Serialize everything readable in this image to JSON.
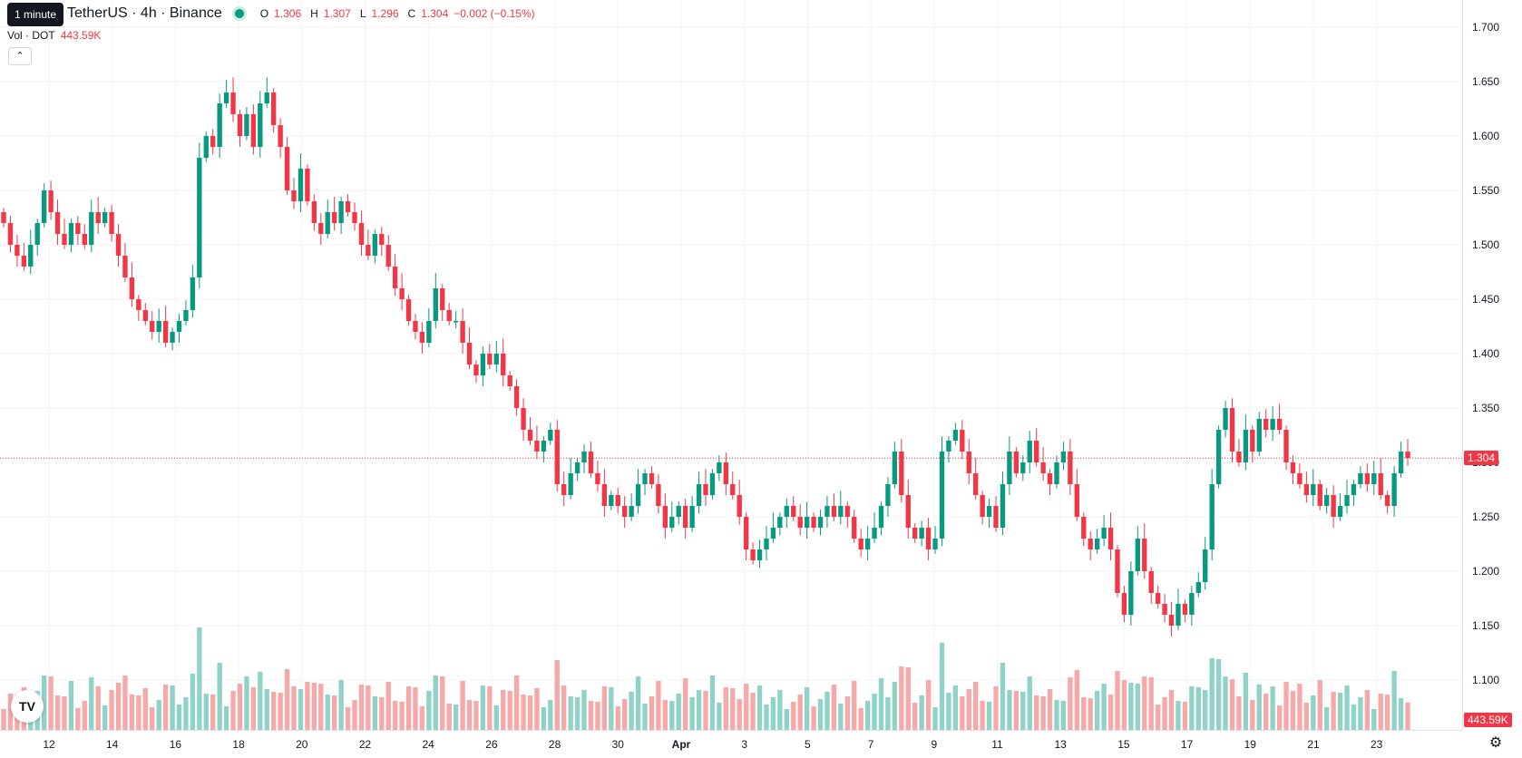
{
  "legend": {
    "symbol": "TetherUS · 4h · Binance",
    "open_key": "O",
    "open": "1.306",
    "high_key": "H",
    "high": "1.307",
    "low_key": "L",
    "low": "1.296",
    "close_key": "C",
    "close": "1.304",
    "change": "−0.002 (−0.15%)"
  },
  "volume_legend": {
    "label": "Vol · DOT",
    "value": "443.59K"
  },
  "tooltip": "1 minute",
  "collapse_icon": "chevron-up-icon",
  "logo_text": "TV",
  "price_badge": "1.304",
  "volume_badge": "443.59K",
  "colors": {
    "up": "#089981",
    "down": "#f23645",
    "up_vol": "#8fd3c8",
    "down_vol": "#f7a9a9",
    "grid": "#f0f3fa"
  },
  "chart_data": {
    "type": "candlestick",
    "price_ticks": [
      "1.700",
      "1.650",
      "1.600",
      "1.550",
      "1.500",
      "1.450",
      "1.400",
      "1.350",
      "1.300",
      "1.250",
      "1.200",
      "1.150",
      "1.100"
    ],
    "time_ticks": [
      "12",
      "14",
      "16",
      "18",
      "20",
      "22",
      "24",
      "26",
      "28",
      "30",
      "Apr",
      "3",
      "5",
      "7",
      "9",
      "11",
      "13",
      "15",
      "17",
      "19",
      "21",
      "23"
    ],
    "ylim": [
      1.1,
      1.7
    ],
    "current_price": 1.304,
    "last_volume": "443.59K",
    "candles": [
      [
        1.53,
        1.52
      ],
      [
        1.52,
        1.5
      ],
      [
        1.5,
        1.49
      ],
      [
        1.49,
        1.48
      ],
      [
        1.48,
        1.5
      ],
      [
        1.5,
        1.52
      ],
      [
        1.52,
        1.55
      ],
      [
        1.55,
        1.53
      ],
      [
        1.53,
        1.51
      ],
      [
        1.51,
        1.5
      ],
      [
        1.5,
        1.52
      ],
      [
        1.52,
        1.51
      ],
      [
        1.51,
        1.5
      ],
      [
        1.5,
        1.53
      ],
      [
        1.53,
        1.52
      ],
      [
        1.52,
        1.53
      ],
      [
        1.53,
        1.51
      ],
      [
        1.51,
        1.49
      ],
      [
        1.49,
        1.47
      ],
      [
        1.47,
        1.45
      ],
      [
        1.45,
        1.44
      ],
      [
        1.44,
        1.43
      ],
      [
        1.43,
        1.42
      ],
      [
        1.42,
        1.43
      ],
      [
        1.43,
        1.41
      ],
      [
        1.41,
        1.42
      ],
      [
        1.42,
        1.43
      ],
      [
        1.43,
        1.44
      ],
      [
        1.44,
        1.47
      ],
      [
        1.47,
        1.58
      ],
      [
        1.58,
        1.6
      ],
      [
        1.6,
        1.59
      ],
      [
        1.59,
        1.63
      ],
      [
        1.63,
        1.64
      ],
      [
        1.64,
        1.62
      ],
      [
        1.62,
        1.6
      ],
      [
        1.6,
        1.62
      ],
      [
        1.62,
        1.59
      ],
      [
        1.59,
        1.63
      ],
      [
        1.63,
        1.64
      ],
      [
        1.64,
        1.61
      ],
      [
        1.61,
        1.59
      ],
      [
        1.59,
        1.55
      ],
      [
        1.55,
        1.54
      ],
      [
        1.54,
        1.57
      ],
      [
        1.57,
        1.54
      ],
      [
        1.54,
        1.52
      ],
      [
        1.52,
        1.51
      ],
      [
        1.51,
        1.53
      ],
      [
        1.53,
        1.52
      ],
      [
        1.52,
        1.54
      ],
      [
        1.54,
        1.53
      ],
      [
        1.53,
        1.52
      ],
      [
        1.52,
        1.5
      ],
      [
        1.5,
        1.49
      ],
      [
        1.49,
        1.51
      ],
      [
        1.51,
        1.5
      ],
      [
        1.5,
        1.48
      ],
      [
        1.48,
        1.46
      ],
      [
        1.46,
        1.45
      ],
      [
        1.45,
        1.43
      ],
      [
        1.43,
        1.42
      ],
      [
        1.42,
        1.41
      ],
      [
        1.41,
        1.43
      ],
      [
        1.43,
        1.46
      ],
      [
        1.46,
        1.44
      ],
      [
        1.44,
        1.43
      ],
      [
        1.43,
        1.43
      ],
      [
        1.43,
        1.41
      ],
      [
        1.41,
        1.39
      ],
      [
        1.39,
        1.38
      ],
      [
        1.38,
        1.4
      ],
      [
        1.4,
        1.39
      ],
      [
        1.39,
        1.4
      ],
      [
        1.4,
        1.38
      ],
      [
        1.38,
        1.37
      ],
      [
        1.37,
        1.35
      ],
      [
        1.35,
        1.33
      ],
      [
        1.33,
        1.32
      ],
      [
        1.32,
        1.31
      ],
      [
        1.31,
        1.32
      ],
      [
        1.32,
        1.33
      ],
      [
        1.33,
        1.28
      ],
      [
        1.28,
        1.27
      ],
      [
        1.27,
        1.29
      ],
      [
        1.29,
        1.3
      ],
      [
        1.3,
        1.31
      ],
      [
        1.31,
        1.29
      ],
      [
        1.29,
        1.28
      ],
      [
        1.28,
        1.26
      ],
      [
        1.26,
        1.27
      ],
      [
        1.27,
        1.26
      ],
      [
        1.26,
        1.25
      ],
      [
        1.25,
        1.26
      ],
      [
        1.26,
        1.28
      ],
      [
        1.28,
        1.29
      ],
      [
        1.29,
        1.28
      ],
      [
        1.28,
        1.26
      ],
      [
        1.26,
        1.24
      ],
      [
        1.24,
        1.25
      ],
      [
        1.25,
        1.26
      ],
      [
        1.26,
        1.24
      ],
      [
        1.24,
        1.26
      ],
      [
        1.26,
        1.28
      ],
      [
        1.28,
        1.27
      ],
      [
        1.27,
        1.29
      ],
      [
        1.29,
        1.3
      ],
      [
        1.3,
        1.28
      ],
      [
        1.28,
        1.27
      ],
      [
        1.27,
        1.25
      ],
      [
        1.25,
        1.22
      ],
      [
        1.22,
        1.21
      ],
      [
        1.21,
        1.22
      ],
      [
        1.22,
        1.23
      ],
      [
        1.23,
        1.24
      ],
      [
        1.24,
        1.25
      ],
      [
        1.25,
        1.26
      ],
      [
        1.26,
        1.25
      ],
      [
        1.25,
        1.24
      ],
      [
        1.24,
        1.25
      ],
      [
        1.25,
        1.24
      ],
      [
        1.24,
        1.25
      ],
      [
        1.25,
        1.26
      ],
      [
        1.26,
        1.25
      ],
      [
        1.25,
        1.26
      ],
      [
        1.26,
        1.25
      ],
      [
        1.25,
        1.23
      ],
      [
        1.23,
        1.22
      ],
      [
        1.22,
        1.23
      ],
      [
        1.23,
        1.24
      ],
      [
        1.24,
        1.26
      ],
      [
        1.26,
        1.28
      ],
      [
        1.28,
        1.31
      ],
      [
        1.31,
        1.27
      ],
      [
        1.27,
        1.24
      ],
      [
        1.24,
        1.23
      ],
      [
        1.23,
        1.24
      ],
      [
        1.24,
        1.22
      ],
      [
        1.22,
        1.23
      ],
      [
        1.23,
        1.31
      ],
      [
        1.31,
        1.32
      ],
      [
        1.32,
        1.33
      ],
      [
        1.33,
        1.31
      ],
      [
        1.31,
        1.29
      ],
      [
        1.29,
        1.27
      ],
      [
        1.27,
        1.25
      ],
      [
        1.25,
        1.26
      ],
      [
        1.26,
        1.24
      ],
      [
        1.24,
        1.28
      ],
      [
        1.28,
        1.31
      ],
      [
        1.31,
        1.29
      ],
      [
        1.29,
        1.3
      ],
      [
        1.3,
        1.32
      ],
      [
        1.32,
        1.3
      ],
      [
        1.3,
        1.29
      ],
      [
        1.29,
        1.28
      ],
      [
        1.28,
        1.3
      ],
      [
        1.3,
        1.31
      ],
      [
        1.31,
        1.28
      ],
      [
        1.28,
        1.25
      ],
      [
        1.25,
        1.23
      ],
      [
        1.23,
        1.22
      ],
      [
        1.22,
        1.23
      ],
      [
        1.23,
        1.24
      ],
      [
        1.24,
        1.22
      ],
      [
        1.22,
        1.18
      ],
      [
        1.18,
        1.16
      ],
      [
        1.16,
        1.2
      ],
      [
        1.2,
        1.23
      ],
      [
        1.23,
        1.2
      ],
      [
        1.2,
        1.18
      ],
      [
        1.18,
        1.17
      ],
      [
        1.17,
        1.16
      ],
      [
        1.16,
        1.15
      ],
      [
        1.15,
        1.17
      ],
      [
        1.17,
        1.16
      ],
      [
        1.16,
        1.18
      ],
      [
        1.18,
        1.19
      ],
      [
        1.19,
        1.22
      ],
      [
        1.22,
        1.28
      ],
      [
        1.28,
        1.33
      ],
      [
        1.33,
        1.35
      ],
      [
        1.35,
        1.31
      ],
      [
        1.31,
        1.3
      ],
      [
        1.3,
        1.33
      ],
      [
        1.33,
        1.31
      ],
      [
        1.31,
        1.34
      ],
      [
        1.34,
        1.33
      ],
      [
        1.33,
        1.34
      ],
      [
        1.34,
        1.33
      ],
      [
        1.33,
        1.3
      ],
      [
        1.3,
        1.29
      ],
      [
        1.29,
        1.28
      ],
      [
        1.28,
        1.27
      ],
      [
        1.27,
        1.28
      ],
      [
        1.28,
        1.26
      ],
      [
        1.26,
        1.27
      ],
      [
        1.27,
        1.25
      ],
      [
        1.25,
        1.26
      ],
      [
        1.26,
        1.27
      ],
      [
        1.27,
        1.28
      ],
      [
        1.28,
        1.29
      ],
      [
        1.29,
        1.28
      ],
      [
        1.28,
        1.29
      ],
      [
        1.29,
        1.27
      ],
      [
        1.27,
        1.26
      ],
      [
        1.26,
        1.29
      ],
      [
        1.29,
        1.31
      ],
      [
        1.31,
        1.304
      ]
    ]
  }
}
